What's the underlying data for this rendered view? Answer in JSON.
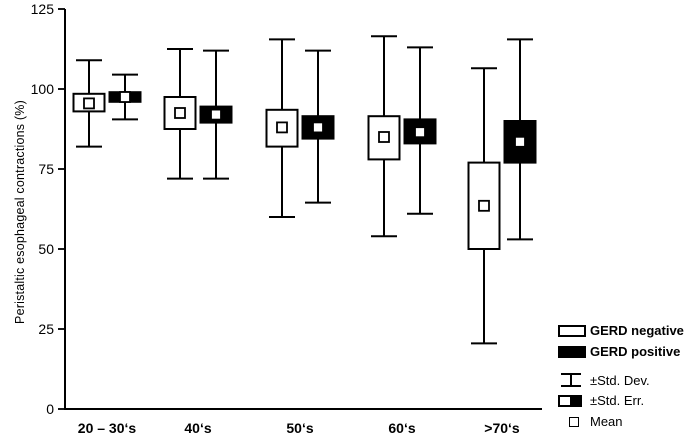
{
  "chart_data": {
    "type": "box",
    "title": "",
    "xlabel": "",
    "ylabel": "Peristaltic esophageal contractions (%)",
    "ylim": [
      0,
      125
    ],
    "yticks": [
      0,
      25,
      50,
      75,
      100,
      125
    ],
    "grid": false,
    "categories": [
      "20 – 30‘s",
      "40‘s",
      "50‘s",
      "60‘s",
      ">70‘s"
    ],
    "box_semantics": {
      "box": "±Std. Err.",
      "whisker": "±Std. Dev.",
      "marker": "Mean"
    },
    "series": [
      {
        "name": "GERD negative",
        "fill": "#ffffff",
        "stroke": "#000000",
        "mean": [
          95.5,
          92.5,
          88.0,
          85.0,
          63.5
        ],
        "std_err_high": [
          98.5,
          97.5,
          93.5,
          91.5,
          77.0
        ],
        "std_err_low": [
          93.0,
          87.5,
          82.0,
          78.0,
          50.0
        ],
        "std_dev_high": [
          109.0,
          112.5,
          115.5,
          116.5,
          106.5
        ],
        "std_dev_low": [
          82.0,
          72.0,
          60.0,
          54.0,
          20.5
        ]
      },
      {
        "name": "GERD positive",
        "fill": "#000000",
        "stroke": "#000000",
        "mean": [
          97.5,
          92.0,
          88.0,
          86.5,
          83.5
        ],
        "std_err_high": [
          99.0,
          94.5,
          91.5,
          90.5,
          90.0
        ],
        "std_err_low": [
          96.0,
          89.5,
          84.5,
          83.0,
          77.0
        ],
        "std_dev_high": [
          104.5,
          112.0,
          112.0,
          113.0,
          115.5
        ],
        "std_dev_low": [
          90.5,
          72.0,
          64.5,
          61.0,
          53.0
        ]
      }
    ],
    "legend": {
      "position": "bottom-right",
      "items": [
        {
          "label": "GERD negative",
          "symbol": "open-box",
          "bold": true
        },
        {
          "label": "GERD positive",
          "symbol": "filled-box",
          "bold": true
        },
        {
          "label": "±Std. Dev.",
          "symbol": "whisker",
          "bold": false
        },
        {
          "label": "±Std. Err.",
          "symbol": "half-box",
          "bold": false
        },
        {
          "label": "Mean",
          "symbol": "open-square",
          "bold": false
        }
      ]
    },
    "colors": {
      "background": "#ffffff",
      "line": "#000000",
      "negative_fill": "#ffffff",
      "positive_fill": "#000000"
    }
  }
}
